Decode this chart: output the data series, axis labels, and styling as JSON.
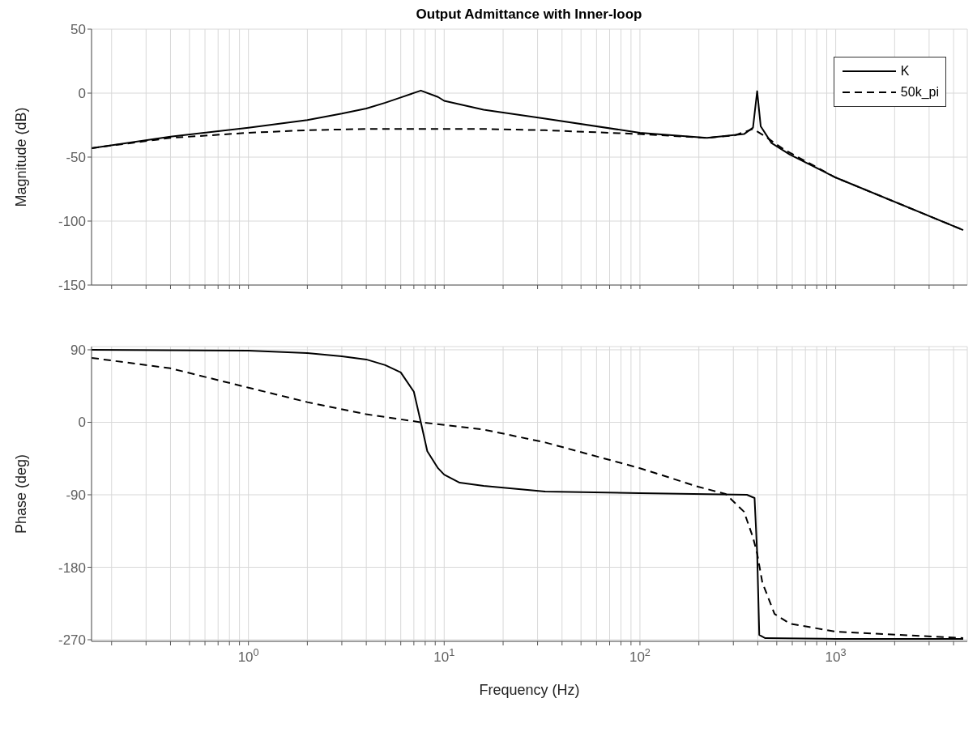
{
  "chart_data": [
    {
      "type": "line",
      "title": "Output Admittance with Inner-loop",
      "ylabel": "Magnitude (dB)",
      "log": "x",
      "grid": true,
      "legend": "top right",
      "tick_labels": "y",
      "xlim": [
        0.158,
        4700
      ],
      "xticks": [
        {
          "value": 0.2,
          "label": null
        },
        {
          "value": 0.3,
          "label": null
        },
        {
          "value": 0.4,
          "label": null
        },
        {
          "value": 0.5,
          "label": null
        },
        {
          "value": 0.6,
          "label": null
        },
        {
          "value": 0.7,
          "label": null
        },
        {
          "value": 0.8,
          "label": null
        },
        {
          "value": 0.9,
          "label": null
        },
        {
          "value": 1,
          "label": null
        },
        {
          "value": 2,
          "label": null
        },
        {
          "value": 3,
          "label": null
        },
        {
          "value": 4,
          "label": null
        },
        {
          "value": 5,
          "label": null
        },
        {
          "value": 6,
          "label": null
        },
        {
          "value": 7,
          "label": null
        },
        {
          "value": 8,
          "label": null
        },
        {
          "value": 9,
          "label": null
        },
        {
          "value": 10,
          "label": null
        },
        {
          "value": 20,
          "label": null
        },
        {
          "value": 30,
          "label": null
        },
        {
          "value": 40,
          "label": null
        },
        {
          "value": 50,
          "label": null
        },
        {
          "value": 60,
          "label": null
        },
        {
          "value": 70,
          "label": null
        },
        {
          "value": 80,
          "label": null
        },
        {
          "value": 90,
          "label": null
        },
        {
          "value": 100,
          "label": null
        },
        {
          "value": 200,
          "label": null
        },
        {
          "value": 300,
          "label": null
        },
        {
          "value": 400,
          "label": null
        },
        {
          "value": 500,
          "label": null
        },
        {
          "value": 600,
          "label": null
        },
        {
          "value": 700,
          "label": null
        },
        {
          "value": 800,
          "label": null
        },
        {
          "value": 900,
          "label": null
        },
        {
          "value": 1000,
          "label": null
        },
        {
          "value": 2000,
          "label": null
        },
        {
          "value": 3000,
          "label": null
        },
        {
          "value": 4000,
          "label": null
        }
      ],
      "ylim": [
        -150,
        50
      ],
      "yticks": [
        -150,
        -100,
        -50,
        0,
        50
      ],
      "series": [
        {
          "name": "K",
          "color": "#000000",
          "line_style": "solid",
          "x": [
            0.158,
            0.4,
            1,
            2,
            3,
            4,
            5,
            6,
            7.6,
            9.3,
            10,
            15.9,
            32.8,
            100,
            220,
            340,
            378,
            397,
            414,
            470,
            583,
            1000,
            4480
          ],
          "values": [
            -43,
            -34,
            -27,
            -21,
            -16,
            -12,
            -7.5,
            -3.4,
            2,
            -3,
            -6,
            -13,
            -20,
            -31,
            -35,
            -32,
            -27,
            1.5,
            -26,
            -39,
            -48,
            -66,
            -107
          ]
        },
        {
          "name": "50k_pi",
          "color": "#000000",
          "line_style": "dashed",
          "x": [
            0.158,
            0.4,
            1,
            2,
            4,
            10,
            15.9,
            32.8,
            100,
            220,
            305,
            378,
            438,
            543,
            1000,
            4480
          ],
          "values": [
            -43,
            -35,
            -31,
            -29,
            -28,
            -28,
            -28,
            -29,
            -32,
            -35,
            -33,
            -28,
            -34,
            -44,
            -66,
            -107
          ]
        }
      ]
    },
    {
      "type": "line",
      "xlabel": "Frequency  (Hz)",
      "ylabel": "Phase (deg)",
      "log": "x",
      "grid": true,
      "xlim": [
        0.158,
        4700
      ],
      "xticks": [
        {
          "value": 0.2,
          "label": null
        },
        {
          "value": 0.3,
          "label": null
        },
        {
          "value": 0.4,
          "label": null
        },
        {
          "value": 0.5,
          "label": null
        },
        {
          "value": 0.6,
          "label": null
        },
        {
          "value": 0.7,
          "label": null
        },
        {
          "value": 0.8,
          "label": null
        },
        {
          "value": 0.9,
          "label": null
        },
        {
          "value": 1,
          "label": "10$^{0}$"
        },
        {
          "value": 2,
          "label": null
        },
        {
          "value": 3,
          "label": null
        },
        {
          "value": 4,
          "label": null
        },
        {
          "value": 5,
          "label": null
        },
        {
          "value": 6,
          "label": null
        },
        {
          "value": 7,
          "label": null
        },
        {
          "value": 8,
          "label": null
        },
        {
          "value": 9,
          "label": null
        },
        {
          "value": 10,
          "label": "10$^{1}$"
        },
        {
          "value": 20,
          "label": null
        },
        {
          "value": 30,
          "label": null
        },
        {
          "value": 40,
          "label": null
        },
        {
          "value": 50,
          "label": null
        },
        {
          "value": 60,
          "label": null
        },
        {
          "value": 70,
          "label": null
        },
        {
          "value": 80,
          "label": null
        },
        {
          "value": 90,
          "label": null
        },
        {
          "value": 100,
          "label": "10$^{2}$"
        },
        {
          "value": 200,
          "label": null
        },
        {
          "value": 300,
          "label": null
        },
        {
          "value": 400,
          "label": null
        },
        {
          "value": 500,
          "label": null
        },
        {
          "value": 600,
          "label": null
        },
        {
          "value": 700,
          "label": null
        },
        {
          "value": 800,
          "label": null
        },
        {
          "value": 900,
          "label": null
        },
        {
          "value": 1000,
          "label": "10$^{3}$"
        },
        {
          "value": 2000,
          "label": null
        },
        {
          "value": 3000,
          "label": null
        },
        {
          "value": 4000,
          "label": null
        }
      ],
      "ylim": [
        -272,
        94
      ],
      "yticks": [
        -270,
        -180,
        -90,
        0,
        90
      ],
      "series": [
        {
          "color": "#000000",
          "line_style": "solid",
          "x": [
            0.158,
            1,
            2,
            3,
            4,
            5,
            6,
            7,
            7.6,
            8.2,
            9.3,
            10,
            12,
            15.9,
            32.8,
            100,
            352,
            385,
            397,
            407,
            437,
            1000,
            4480
          ],
          "values": [
            90,
            89,
            86,
            82,
            78,
            71,
            62,
            38,
            0,
            -36,
            -57,
            -65,
            -75,
            -79,
            -86,
            -88,
            -90,
            -94,
            -163,
            -264,
            -268,
            -269,
            -269
          ]
        },
        {
          "color": "#000000",
          "line_style": "dashed",
          "x": [
            0.158,
            0.4,
            1,
            2,
            4,
            7.6,
            15.9,
            32.8,
            100,
            198,
            274,
            340,
            378,
            397,
            422,
            487,
            583,
            1000,
            4480
          ],
          "values": [
            80,
            67,
            43,
            25,
            10,
            0,
            -9,
            -25,
            -57,
            -80,
            -89,
            -111,
            -143,
            -163,
            -199,
            -238,
            -250,
            -260,
            -268
          ]
        }
      ]
    }
  ]
}
